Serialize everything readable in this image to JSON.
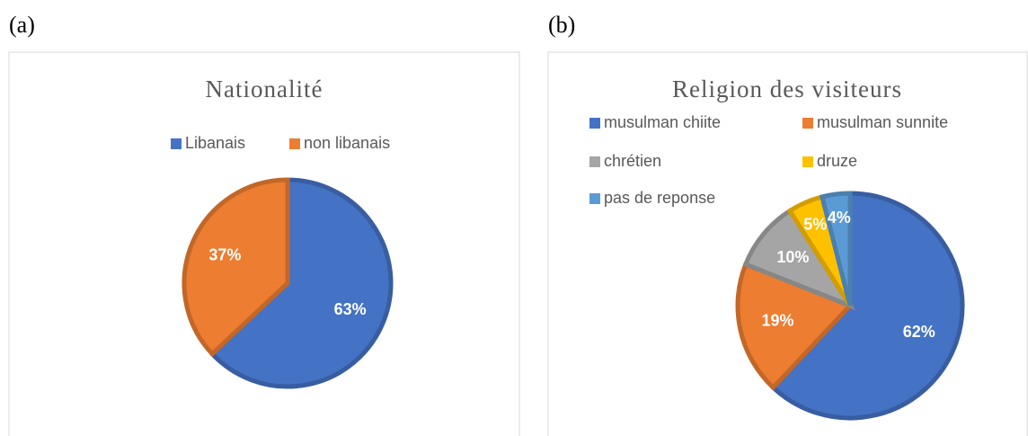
{
  "chart_data": [
    {
      "type": "pie",
      "label": "(a)",
      "title": "Nationalité",
      "categories": [
        "Libanais",
        "non libanais"
      ],
      "values": [
        63,
        37
      ],
      "value_labels": [
        "63%",
        "37%"
      ],
      "colors": [
        "#4472c4",
        "#ed7d31"
      ]
    },
    {
      "type": "pie",
      "label": "(b)",
      "title": "Religion des visiteurs",
      "categories": [
        "musulman chiite",
        "musulman sunnite",
        "chrétien",
        "druze",
        "pas de reponse"
      ],
      "values": [
        62,
        19,
        10,
        5,
        4
      ],
      "value_labels": [
        "62%",
        "19%",
        "10%",
        "5%",
        "4%"
      ],
      "colors": [
        "#4472c4",
        "#ed7d31",
        "#a5a5a5",
        "#ffc000",
        "#5b9bd5"
      ]
    }
  ]
}
